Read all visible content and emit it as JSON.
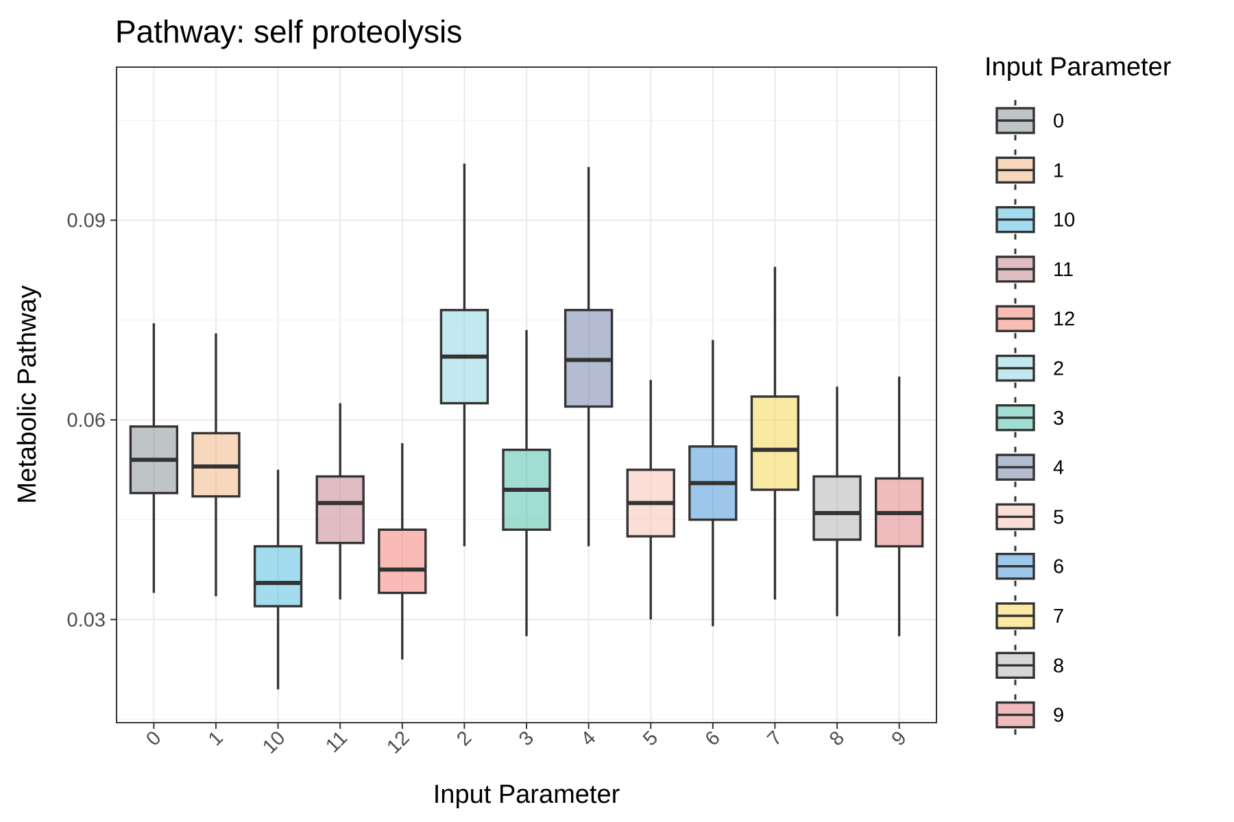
{
  "chart_data": {
    "type": "box",
    "title": "Pathway: self proteolysis",
    "xlabel": "Input Parameter",
    "ylabel": "Metabolic Pathway",
    "ylim": [
      0.0145,
      0.113
    ],
    "yticks": [
      0.03,
      0.06,
      0.09
    ],
    "ytick_labels": [
      "0.03",
      "0.06",
      "0.09"
    ],
    "grid": true,
    "legend": {
      "title": "Input Parameter",
      "placement": "right"
    },
    "categories": [
      "0",
      "1",
      "10",
      "11",
      "12",
      "2",
      "3",
      "4",
      "5",
      "6",
      "7",
      "8",
      "9"
    ],
    "boxes": [
      {
        "category": "0",
        "whisker_low": 0.034,
        "q1": 0.049,
        "median": 0.054,
        "q3": 0.059,
        "whisker_high": 0.0745,
        "color": "#7f8c8d"
      },
      {
        "category": "1",
        "whisker_low": 0.0335,
        "q1": 0.0485,
        "median": 0.053,
        "q3": 0.058,
        "whisker_high": 0.073,
        "color": "#f0b27a"
      },
      {
        "category": "10",
        "whisker_low": 0.0195,
        "q1": 0.032,
        "median": 0.0355,
        "q3": 0.041,
        "whisker_high": 0.0525,
        "color": "#48b8e0"
      },
      {
        "category": "11",
        "whisker_low": 0.033,
        "q1": 0.0415,
        "median": 0.0475,
        "q3": 0.0515,
        "whisker_high": 0.0625,
        "color": "#c27c85"
      },
      {
        "category": "12",
        "whisker_low": 0.024,
        "q1": 0.034,
        "median": 0.0375,
        "q3": 0.0435,
        "whisker_high": 0.0565,
        "color": "#f1776d"
      },
      {
        "category": "2",
        "whisker_low": 0.041,
        "q1": 0.0625,
        "median": 0.0695,
        "q3": 0.0765,
        "whisker_high": 0.0985,
        "color": "#85d2e2"
      },
      {
        "category": "3",
        "whisker_low": 0.0275,
        "q1": 0.0435,
        "median": 0.0495,
        "q3": 0.0555,
        "whisker_high": 0.0735,
        "color": "#45bba3"
      },
      {
        "category": "4",
        "whisker_low": 0.041,
        "q1": 0.062,
        "median": 0.069,
        "q3": 0.0765,
        "whisker_high": 0.098,
        "color": "#6a7aa3"
      },
      {
        "category": "5",
        "whisker_low": 0.03,
        "q1": 0.0425,
        "median": 0.0475,
        "q3": 0.0525,
        "whisker_high": 0.066,
        "color": "#f8c0b0"
      },
      {
        "category": "6",
        "whisker_low": 0.029,
        "q1": 0.045,
        "median": 0.0505,
        "q3": 0.056,
        "whisker_high": 0.072,
        "color": "#3b8fd6"
      },
      {
        "category": "7",
        "whisker_low": 0.033,
        "q1": 0.0495,
        "median": 0.0555,
        "q3": 0.0635,
        "whisker_high": 0.083,
        "color": "#f5d447"
      },
      {
        "category": "8",
        "whisker_low": 0.0305,
        "q1": 0.042,
        "median": 0.046,
        "q3": 0.0515,
        "whisker_high": 0.065,
        "color": "#aeaeae"
      },
      {
        "category": "9",
        "whisker_low": 0.0275,
        "q1": 0.041,
        "median": 0.046,
        "q3": 0.0512,
        "whisker_high": 0.0665,
        "color": "#e2787b"
      }
    ]
  }
}
